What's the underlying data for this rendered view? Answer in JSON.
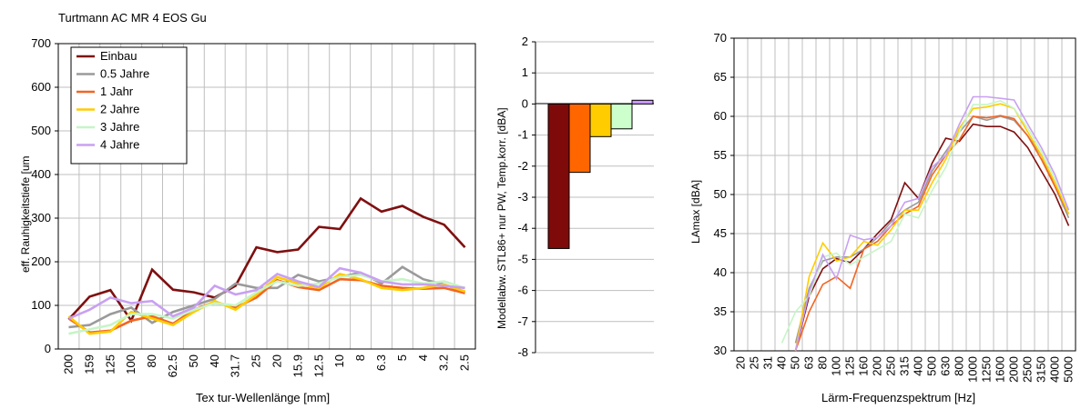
{
  "title": "Turtmann AC MR 4 EOS Gu",
  "chart_data": [
    {
      "type": "line",
      "ylabel": "eff. Rauhigkeitstiefe [um",
      "xlabel": "Tex tur-Wellenlänge [mm]",
      "ylim": [
        0,
        700
      ],
      "yticks": [
        0,
        100,
        200,
        300,
        400,
        500,
        600,
        700
      ],
      "categories": [
        "200",
        "159",
        "125",
        "100",
        "80",
        "62.5",
        "50",
        "40",
        "31.7",
        "25",
        "20",
        "15.9",
        "12.5",
        "10",
        "8",
        "6.3",
        "5",
        "4",
        "3.2",
        "2.5"
      ],
      "grid": true,
      "legend_position": "top-left",
      "series": [
        {
          "name": "Einbau",
          "color": "#7f1010",
          "values": [
            68,
            120,
            135,
            65,
            182,
            136,
            130,
            118,
            145,
            233,
            222,
            228,
            280,
            275,
            345,
            315,
            328,
            303,
            285,
            233
          ]
        },
        {
          "name": "0.5 Jahre",
          "color": "#9a9a9a",
          "values": [
            50,
            55,
            80,
            95,
            60,
            85,
            100,
            115,
            150,
            140,
            140,
            170,
            155,
            165,
            175,
            150,
            188,
            160,
            148,
            130
          ]
        },
        {
          "name": "1 Jahr",
          "color": "#f26522",
          "values": [
            70,
            38,
            42,
            65,
            75,
            58,
            90,
            108,
            95,
            118,
            158,
            142,
            135,
            160,
            158,
            145,
            140,
            138,
            140,
            128
          ]
        },
        {
          "name": "2 Jahre",
          "color": "#ffcc00",
          "values": [
            75,
            35,
            40,
            85,
            70,
            55,
            85,
            110,
            90,
            125,
            165,
            150,
            140,
            172,
            160,
            140,
            135,
            140,
            148,
            132
          ]
        },
        {
          "name": "3 Jahre",
          "color": "#c6f5c6",
          "values": [
            35,
            45,
            55,
            80,
            80,
            70,
            90,
            105,
            100,
            130,
            155,
            145,
            150,
            165,
            170,
            155,
            160,
            150,
            155,
            140
          ]
        },
        {
          "name": "4 Jahre",
          "color": "#c9a0f2",
          "values": [
            70,
            90,
            118,
            105,
            110,
            75,
            95,
            145,
            125,
            135,
            172,
            155,
            142,
            185,
            175,
            155,
            148,
            148,
            145,
            140
          ]
        }
      ]
    },
    {
      "type": "bar",
      "ylabel": "Modellabw. STL86+ nur PW, Temp.korr. [dBA]",
      "ylim": [
        -8,
        2
      ],
      "yticks": [
        -8,
        -7,
        -6,
        -5,
        -4,
        -3,
        -2,
        -1,
        0,
        1,
        2
      ],
      "categories": [
        "Einbau",
        "0.5 Jahre",
        "1 Jahr",
        "2 Jahre",
        "3 Jahre",
        "4 Jahre"
      ],
      "values": [
        -4.65,
        null,
        -2.2,
        -1.05,
        -0.8,
        0.12
      ],
      "colors": [
        "#7f0a0a",
        "#9a9a9a",
        "#ff6600",
        "#ffcc00",
        "#ccffcc",
        "#cc99ff"
      ],
      "grid": true
    },
    {
      "type": "line",
      "ylabel": "LAmax [dBA]",
      "xlabel": "Lärm-Frequenzspektrum [Hz]",
      "ylim": [
        30,
        70
      ],
      "yticks": [
        30,
        35,
        40,
        45,
        50,
        55,
        60,
        65,
        70
      ],
      "categories": [
        "20",
        "25",
        "31",
        "40",
        "50",
        "63",
        "80",
        "100",
        "125",
        "160",
        "200",
        "250",
        "315",
        "400",
        "500",
        "630",
        "800",
        "1000",
        "1250",
        "1600",
        "2000",
        "2500",
        "3150",
        "4000",
        "5000"
      ],
      "grid": true,
      "series": [
        {
          "name": "Einbau",
          "color": "#7f1010",
          "values": [
            null,
            null,
            null,
            null,
            30,
            37,
            40.5,
            41.8,
            41.3,
            43,
            45,
            46.8,
            51.5,
            49.5,
            54,
            57.2,
            56.8,
            59,
            58.7,
            58.7,
            58,
            56,
            53,
            50,
            46
          ]
        },
        {
          "name": "0.5 Jahre",
          "color": "#9a9a9a",
          "values": [
            null,
            null,
            null,
            null,
            31,
            38,
            41.5,
            42,
            42,
            43,
            44.5,
            46.5,
            48,
            49,
            53,
            55.5,
            58,
            60,
            59.5,
            60,
            59.5,
            57.5,
            55,
            51,
            47
          ]
        },
        {
          "name": "1 Jahr",
          "color": "#f26522",
          "values": [
            null,
            null,
            null,
            null,
            30,
            35,
            38.5,
            39.5,
            38,
            43,
            44,
            46,
            47.5,
            48.5,
            52.5,
            55,
            57,
            60,
            59.8,
            60.1,
            59.7,
            57.5,
            54.5,
            51,
            47.5
          ]
        },
        {
          "name": "2 Jahre",
          "color": "#ffcc00",
          "values": [
            null,
            null,
            null,
            null,
            30,
            39.5,
            43.8,
            41.5,
            42,
            44,
            43.5,
            45.5,
            48,
            48,
            51.5,
            54.5,
            58.5,
            61,
            61.2,
            61.6,
            61,
            58,
            55,
            51.5,
            47.5
          ]
        },
        {
          "name": "3 Jahre",
          "color": "#c6f5c6",
          "values": [
            null,
            null,
            null,
            31,
            35,
            37,
            42,
            42.5,
            41,
            42,
            43,
            44,
            47.5,
            47,
            50.5,
            53.5,
            58,
            61.5,
            61.5,
            62,
            61,
            58.5,
            55.5,
            52,
            48
          ]
        },
        {
          "name": "4 Jahre",
          "color": "#c9a0f2",
          "values": [
            null,
            null,
            null,
            null,
            30,
            37.5,
            42.3,
            39.2,
            44.8,
            44.2,
            44.5,
            46,
            49,
            49.5,
            53.5,
            55,
            59,
            62.5,
            62.5,
            62.3,
            62.1,
            59,
            56,
            52.5,
            48
          ]
        }
      ]
    }
  ]
}
